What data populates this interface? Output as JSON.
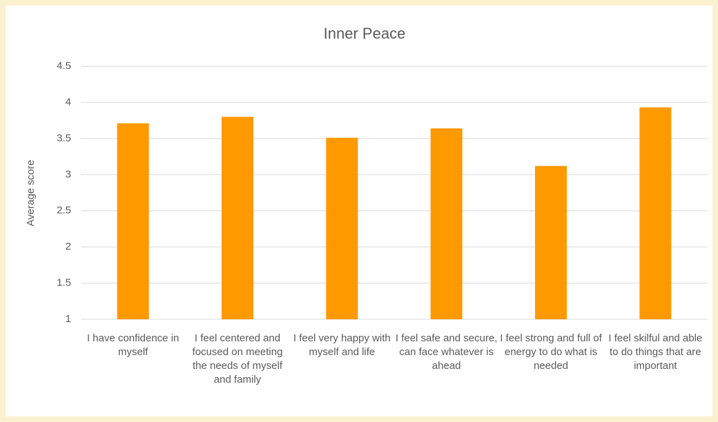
{
  "chart_data": {
    "type": "bar",
    "title": "Inner Peace",
    "y_label": "Average score",
    "categories": [
      "I have confidence in myself",
      "I feel centered and focused on meeting the needs of myself and family",
      "I feel very happy with myself and life",
      "I feel safe and secure, can face whatever is ahead",
      "I feel strong and full of energy to do what is needed",
      "I feel skilful and able to do things that are important"
    ],
    "values": [
      3.71,
      3.8,
      3.51,
      3.64,
      3.12,
      3.93
    ],
    "color": "#ff9900",
    "ylim": [
      1,
      4.5
    ],
    "yticks": [
      1,
      1.5,
      2,
      2.5,
      3,
      3.5,
      4,
      4.5
    ],
    "grid": true
  }
}
